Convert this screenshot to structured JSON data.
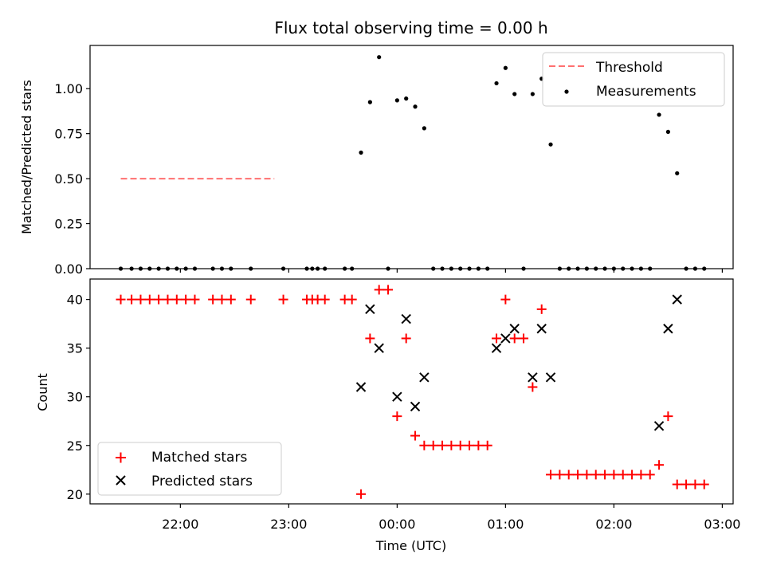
{
  "chart_data": [
    {
      "type": "scatter",
      "title": "Flux total observing time = 0.00 h",
      "ylabel": "Matched/Predicted stars",
      "xlabel": "",
      "ylim": [
        0,
        1.24
      ],
      "yticks": [
        "0.00",
        "0.25",
        "0.50",
        "0.75",
        "1.00"
      ],
      "ytick_values": [
        0,
        0.25,
        0.5,
        0.75,
        1.0
      ],
      "grid": false,
      "legend_position": "top-right",
      "threshold": {
        "name": "Threshold",
        "value": 0.5,
        "x_range": [
          "21:27",
          "22:52"
        ],
        "color": "#ff7070"
      },
      "series": [
        {
          "name": "Measurements",
          "color": "#000000",
          "points": [
            [
              "21:27",
              0
            ],
            [
              "21:33",
              0
            ],
            [
              "21:38",
              0
            ],
            [
              "21:43",
              0
            ],
            [
              "21:48",
              0
            ],
            [
              "21:53",
              0
            ],
            [
              "21:58",
              0
            ],
            [
              "22:03",
              0
            ],
            [
              "22:08",
              0
            ],
            [
              "22:18",
              0
            ],
            [
              "22:23",
              0
            ],
            [
              "22:28",
              0
            ],
            [
              "22:39",
              0
            ],
            [
              "22:57",
              0
            ],
            [
              "23:10",
              0
            ],
            [
              "23:13",
              0
            ],
            [
              "23:16",
              0
            ],
            [
              "23:20",
              0
            ],
            [
              "23:31",
              0
            ],
            [
              "23:35",
              0
            ],
            [
              "23:40",
              0.645
            ],
            [
              "23:45",
              0.925
            ],
            [
              "23:50",
              1.175
            ],
            [
              "23:55",
              0
            ],
            [
              "24:00",
              0.935
            ],
            [
              "24:05",
              0.945
            ],
            [
              "24:10",
              0.9
            ],
            [
              "24:15",
              0.78
            ],
            [
              "24:20",
              0
            ],
            [
              "24:25",
              0
            ],
            [
              "24:30",
              0
            ],
            [
              "24:35",
              0
            ],
            [
              "24:40",
              0
            ],
            [
              "24:45",
              0
            ],
            [
              "24:50",
              0
            ],
            [
              "24:55",
              1.03
            ],
            [
              "25:00",
              1.115
            ],
            [
              "25:05",
              0.97
            ],
            [
              "25:10",
              0
            ],
            [
              "25:15",
              0.97
            ],
            [
              "25:20",
              1.055
            ],
            [
              "25:25",
              0.69
            ],
            [
              "25:30",
              0
            ],
            [
              "25:35",
              0
            ],
            [
              "25:40",
              0
            ],
            [
              "25:45",
              0
            ],
            [
              "25:50",
              0
            ],
            [
              "25:55",
              0
            ],
            [
              "26:00",
              0
            ],
            [
              "26:05",
              0
            ],
            [
              "26:10",
              0
            ],
            [
              "26:15",
              0
            ],
            [
              "26:20",
              0
            ],
            [
              "26:25",
              0.855
            ],
            [
              "26:30",
              0.76
            ],
            [
              "26:35",
              0.53
            ],
            [
              "26:40",
              0
            ],
            [
              "26:45",
              0
            ],
            [
              "26:50",
              0
            ]
          ]
        }
      ]
    },
    {
      "type": "scatter",
      "title": "",
      "ylabel": "Count",
      "xlabel": "Time (UTC)",
      "ylim": [
        19,
        42.1
      ],
      "yticks": [
        "20",
        "25",
        "30",
        "35",
        "40"
      ],
      "ytick_values": [
        20,
        25,
        30,
        35,
        40
      ],
      "xticks": [
        "22:00",
        "23:00",
        "00:00",
        "01:00",
        "02:00",
        "03:00"
      ],
      "xtick_values": [
        "22:00",
        "23:00",
        "24:00",
        "25:00",
        "26:00",
        "27:00"
      ],
      "xlim": [
        "21:10",
        "27:06"
      ],
      "grid": false,
      "legend_position": "bottom-left",
      "series": [
        {
          "name": "Matched stars",
          "color": "#ff0000",
          "marker": "+",
          "points": [
            [
              "21:27",
              40
            ],
            [
              "21:33",
              40
            ],
            [
              "21:38",
              40
            ],
            [
              "21:43",
              40
            ],
            [
              "21:48",
              40
            ],
            [
              "21:53",
              40
            ],
            [
              "21:58",
              40
            ],
            [
              "22:03",
              40
            ],
            [
              "22:08",
              40
            ],
            [
              "22:18",
              40
            ],
            [
              "22:23",
              40
            ],
            [
              "22:28",
              40
            ],
            [
              "22:39",
              40
            ],
            [
              "22:57",
              40
            ],
            [
              "23:10",
              40
            ],
            [
              "23:13",
              40
            ],
            [
              "23:16",
              40
            ],
            [
              "23:20",
              40
            ],
            [
              "23:31",
              40
            ],
            [
              "23:35",
              40
            ],
            [
              "23:40",
              20
            ],
            [
              "23:45",
              36
            ],
            [
              "23:50",
              41
            ],
            [
              "23:55",
              41
            ],
            [
              "24:00",
              28
            ],
            [
              "24:05",
              36
            ],
            [
              "24:10",
              26
            ],
            [
              "24:15",
              25
            ],
            [
              "24:20",
              25
            ],
            [
              "24:25",
              25
            ],
            [
              "24:30",
              25
            ],
            [
              "24:35",
              25
            ],
            [
              "24:40",
              25
            ],
            [
              "24:45",
              25
            ],
            [
              "24:50",
              25
            ],
            [
              "24:55",
              36
            ],
            [
              "25:00",
              40
            ],
            [
              "25:05",
              36
            ],
            [
              "25:10",
              36
            ],
            [
              "25:15",
              31
            ],
            [
              "25:20",
              39
            ],
            [
              "25:25",
              22
            ],
            [
              "25:30",
              22
            ],
            [
              "25:35",
              22
            ],
            [
              "25:40",
              22
            ],
            [
              "25:45",
              22
            ],
            [
              "25:50",
              22
            ],
            [
              "25:55",
              22
            ],
            [
              "26:00",
              22
            ],
            [
              "26:05",
              22
            ],
            [
              "26:10",
              22
            ],
            [
              "26:15",
              22
            ],
            [
              "26:20",
              22
            ],
            [
              "26:25",
              23
            ],
            [
              "26:30",
              28
            ],
            [
              "26:35",
              21
            ],
            [
              "26:40",
              21
            ],
            [
              "26:45",
              21
            ],
            [
              "26:50",
              21
            ]
          ]
        },
        {
          "name": "Predicted stars",
          "color": "#000000",
          "marker": "x",
          "points": [
            [
              "23:40",
              31
            ],
            [
              "23:45",
              39
            ],
            [
              "23:50",
              35
            ],
            [
              "24:00",
              30
            ],
            [
              "24:05",
              38
            ],
            [
              "24:10",
              29
            ],
            [
              "24:15",
              32
            ],
            [
              "24:55",
              35
            ],
            [
              "25:00",
              36
            ],
            [
              "25:05",
              37
            ],
            [
              "25:15",
              32
            ],
            [
              "25:20",
              37
            ],
            [
              "25:25",
              32
            ],
            [
              "26:25",
              27
            ],
            [
              "26:30",
              37
            ],
            [
              "26:35",
              40
            ]
          ]
        }
      ]
    }
  ]
}
